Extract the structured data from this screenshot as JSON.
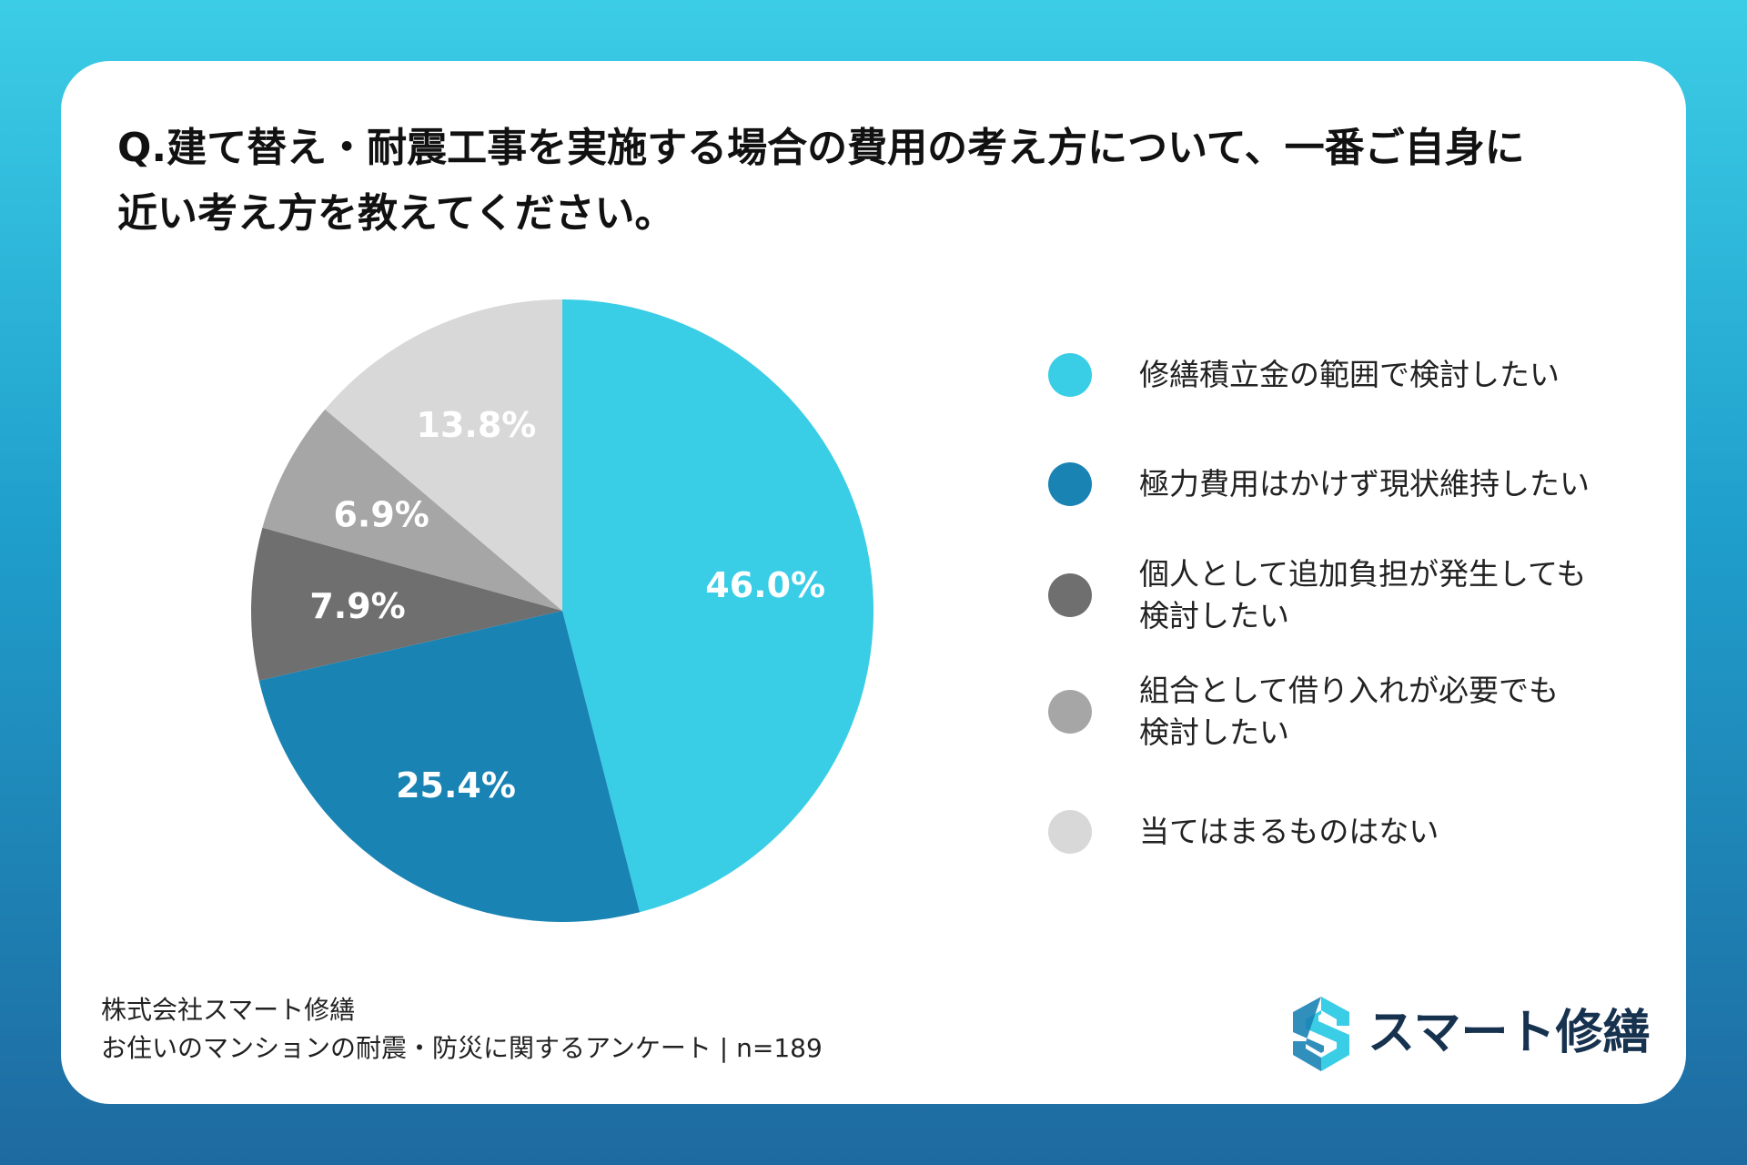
{
  "title_lines": [
    "Q.建て替え・耐震工事を実施する場合の費用の考え方について、一番ご自身に",
    "近い考え方を教えてください。"
  ],
  "chart_data": {
    "type": "pie",
    "title": "Q.建て替え・耐震工事を実施する場合の費用の考え方について、一番ご自身に近い考え方を教えてください。",
    "unit": "%",
    "categories": [
      "修繕積立金の範囲で検討したい",
      "極力費用はかけず現状維持したい",
      "個人として追加負担が発生しても検討したい",
      "組合として借り入れが必要でも検討したい",
      "当てはまるものはない"
    ],
    "values": [
      46.0,
      25.4,
      7.9,
      6.9,
      13.8
    ],
    "data_labels": [
      "46.0%",
      "25.4%",
      "7.9%",
      "6.9%",
      "13.8%"
    ],
    "colors": [
      "#3acde6",
      "#1983b4",
      "#6f6f6f",
      "#a6a6a6",
      "#d8d8d8"
    ],
    "start": "12 o'clock",
    "direction": "clockwise",
    "legend_position": "right"
  },
  "legend": {
    "items": [
      {
        "lines": [
          "修繕積立金の範囲で検討したい"
        ]
      },
      {
        "lines": [
          "極力費用はかけず現状維持したい"
        ]
      },
      {
        "lines": [
          "個人として追加負担が発生しても",
          "検討したい"
        ]
      },
      {
        "lines": [
          "組合として借り入れが必要でも",
          "検討したい"
        ]
      },
      {
        "lines": [
          "当てはまるものはない"
        ]
      }
    ]
  },
  "source": {
    "company": "株式会社スマート修繕",
    "survey": "お住いのマンションの耐震・防災に関するアンケート | n=189"
  },
  "logo": {
    "text": "スマート修繕",
    "icon": "s-logo-icon",
    "colors": [
      "#3acde6",
      "#1983b4"
    ]
  }
}
